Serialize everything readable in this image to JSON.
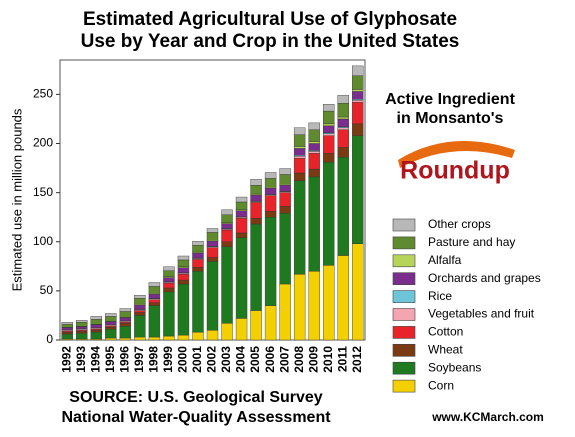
{
  "chart_data": {
    "type": "stacked_bar",
    "title_lines": [
      "Estimated Agricultural Use of Glyphosate",
      "Use by Year and Crop in the United States"
    ],
    "y_label": "Estimated use in million pounds",
    "annotation_lines": [
      "Active Ingredient",
      "in Monsanto's"
    ],
    "logo_text": "Roundup",
    "source_lines": [
      "SOURCE: U.S. Geological Survey",
      "National Water-Quality Assessment"
    ],
    "website": "www.KCMarch.com",
    "categories": [
      "1992",
      "1993",
      "1994",
      "1995",
      "1996",
      "1997",
      "1998",
      "1999",
      "2000",
      "2001",
      "2002",
      "2003",
      "2004",
      "2005",
      "2006",
      "2007",
      "2008",
      "2009",
      "2010",
      "2011",
      "2012"
    ],
    "ylim": [
      0,
      285
    ],
    "yticks": [
      0,
      50,
      100,
      150,
      200,
      250
    ],
    "series": [
      {
        "name": "Corn",
        "color": "#f5d000",
        "values": [
          1,
          1,
          1,
          2,
          2,
          3,
          3,
          4,
          5,
          8,
          10,
          17,
          22,
          30,
          35,
          57,
          67,
          70,
          76,
          86,
          98
        ]
      },
      {
        "name": "Soybeans",
        "color": "#1f7a1f",
        "values": [
          5,
          6,
          7,
          9,
          12,
          22,
          32,
          45,
          52,
          62,
          70,
          78,
          82,
          88,
          90,
          72,
          95,
          96,
          105,
          100,
          110
        ]
      },
      {
        "name": "Wheat",
        "color": "#7a3a12",
        "values": [
          2,
          2,
          2,
          2,
          3,
          3,
          3,
          4,
          4,
          4,
          4,
          5,
          5,
          6,
          6,
          7,
          8,
          8,
          9,
          10,
          12
        ]
      },
      {
        "name": "Cotton",
        "color": "#e8232a",
        "values": [
          1,
          1,
          1,
          1,
          1,
          2,
          3,
          5,
          6,
          8,
          10,
          12,
          15,
          16,
          16,
          14,
          15,
          16,
          18,
          18,
          22
        ]
      },
      {
        "name": "Vegetables and fruit",
        "color": "#f4a6b0",
        "values": [
          1,
          1,
          1,
          1,
          1,
          1,
          1,
          1,
          1,
          1,
          1,
          1,
          1,
          1,
          1,
          1,
          2,
          2,
          2,
          2,
          2
        ]
      },
      {
        "name": "Rice",
        "color": "#6cc6d8",
        "values": [
          0.5,
          0.5,
          0.5,
          0.5,
          0.5,
          0.5,
          0.5,
          0.5,
          0.5,
          0.5,
          0.5,
          0.5,
          0.5,
          0.5,
          0.5,
          0.5,
          1,
          1,
          1,
          1,
          1
        ]
      },
      {
        "name": "Orchards and grapes",
        "color": "#7b2d8e",
        "values": [
          2,
          2,
          3,
          3,
          3,
          4,
          4,
          4,
          5,
          5,
          5,
          5,
          6,
          6,
          6,
          6,
          7,
          7,
          7,
          8,
          8
        ]
      },
      {
        "name": "Alfalfa",
        "color": "#b6d35a",
        "values": [
          0.5,
          0.5,
          0.5,
          0.5,
          0.5,
          1,
          1,
          1,
          1,
          1,
          1,
          1,
          1,
          1,
          1,
          1,
          2,
          2,
          2,
          2,
          2
        ]
      },
      {
        "name": "Pasture and hay",
        "color": "#5f8a2e",
        "values": [
          3,
          4,
          5,
          5,
          6,
          6,
          7,
          6,
          7,
          7,
          8,
          8,
          8,
          9,
          9,
          10,
          12,
          12,
          13,
          14,
          14
        ]
      },
      {
        "name": "Other crops",
        "color": "#b8b8b8",
        "values": [
          2,
          2,
          3,
          3,
          3,
          3,
          4,
          4,
          4,
          4,
          4,
          5,
          5,
          6,
          6,
          6,
          7,
          7,
          7,
          8,
          10
        ]
      }
    ]
  }
}
